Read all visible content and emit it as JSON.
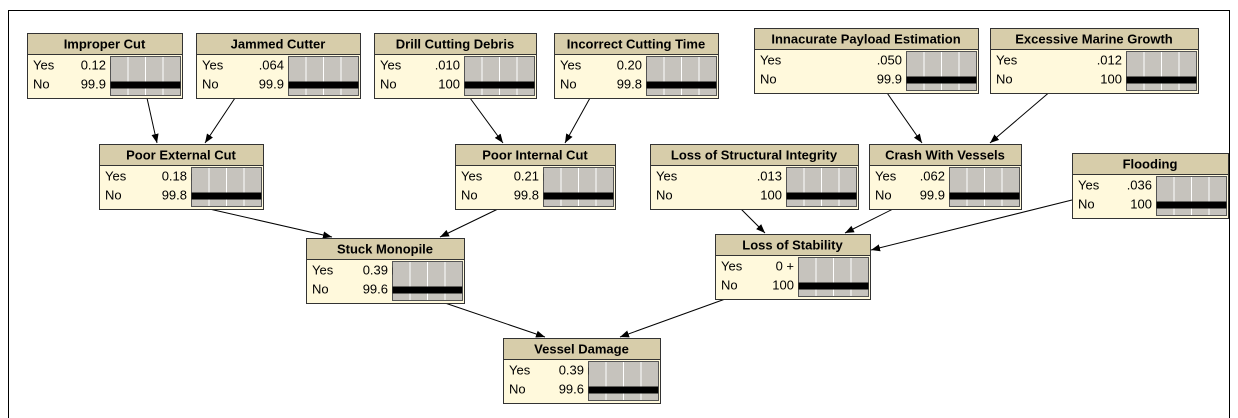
{
  "nodes": [
    {
      "title": "Improper Cut",
      "states": [
        {
          "label": "Yes",
          "value": 0.12
        },
        {
          "label": "No",
          "value": 99.9
        }
      ]
    },
    {
      "title": "Jammed Cutter",
      "states": [
        {
          "label": "Yes",
          "value": 0.064,
          "value_label": ".064"
        },
        {
          "label": "No",
          "value": 99.9
        }
      ]
    },
    {
      "title": "Drill Cutting Debris",
      "states": [
        {
          "label": "Yes",
          "value": 0.01,
          "value_label": ".010"
        },
        {
          "label": "No",
          "value": 100
        }
      ]
    },
    {
      "title": "Incorrect Cutting Time",
      "states": [
        {
          "label": "Yes",
          "value": 0.2,
          "value_label": "0.20"
        },
        {
          "label": "No",
          "value": 99.8
        }
      ]
    },
    {
      "title": "Innacurate Payload Estimation",
      "states": [
        {
          "label": "Yes",
          "value": 0.05,
          "value_label": ".050"
        },
        {
          "label": "No",
          "value": 99.9
        }
      ]
    },
    {
      "title": "Excessive Marine Growth",
      "states": [
        {
          "label": "Yes",
          "value": 0.012,
          "value_label": ".012"
        },
        {
          "label": "No",
          "value": 100
        }
      ]
    },
    {
      "title": "Poor External Cut",
      "states": [
        {
          "label": "Yes",
          "value": 0.18
        },
        {
          "label": "No",
          "value": 99.8
        }
      ]
    },
    {
      "title": "Poor Internal Cut",
      "states": [
        {
          "label": "Yes",
          "value": 0.21
        },
        {
          "label": "No",
          "value": 99.8
        }
      ]
    },
    {
      "title": "Loss of Structural Integrity",
      "states": [
        {
          "label": "Yes",
          "value": 0.013,
          "value_label": ".013"
        },
        {
          "label": "No",
          "value": 100
        }
      ]
    },
    {
      "title": "Crash With Vessels",
      "states": [
        {
          "label": "Yes",
          "value": 0.062,
          "value_label": ".062"
        },
        {
          "label": "No",
          "value": 99.9
        }
      ]
    },
    {
      "title": "Flooding",
      "states": [
        {
          "label": "Yes",
          "value": 0.036,
          "value_label": ".036"
        },
        {
          "label": "No",
          "value": 100
        }
      ]
    },
    {
      "title": "Stuck Monopile",
      "states": [
        {
          "label": "Yes",
          "value": 0.39
        },
        {
          "label": "No",
          "value": 99.6
        }
      ]
    },
    {
      "title": "Loss of Stability",
      "states": [
        {
          "label": "Yes",
          "value": 0,
          "value_label": "0 +"
        },
        {
          "label": "No",
          "value": 100
        }
      ]
    },
    {
      "title": "Vessel Damage",
      "states": [
        {
          "label": "Yes",
          "value": 0.39
        },
        {
          "label": "No",
          "value": 99.6
        }
      ]
    }
  ]
}
